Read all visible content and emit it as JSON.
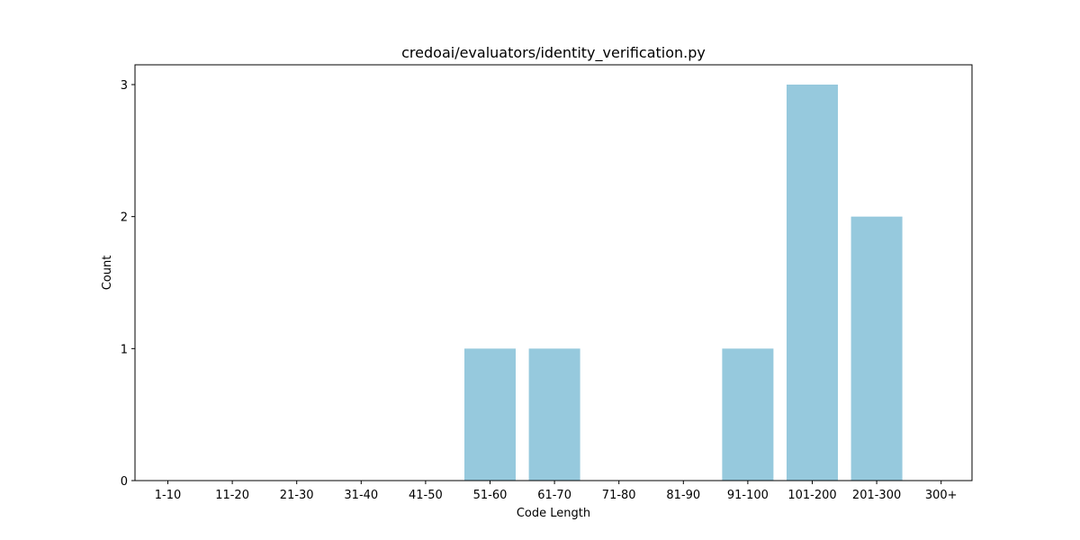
{
  "chart_data": {
    "type": "bar",
    "title": "credoai/evaluators/identity_verification.py",
    "xlabel": "Code Length",
    "ylabel": "Count",
    "categories": [
      "1-10",
      "11-20",
      "21-30",
      "31-40",
      "41-50",
      "51-60",
      "61-70",
      "71-80",
      "81-90",
      "91-100",
      "101-200",
      "201-300",
      "300+"
    ],
    "values": [
      0,
      0,
      0,
      0,
      0,
      1,
      1,
      0,
      0,
      1,
      3,
      2,
      0
    ],
    "yticks": [
      0,
      1,
      2,
      3
    ],
    "ylim": [
      0,
      3.15
    ],
    "bar_color": "#96c9dd",
    "grid": false,
    "legend": "none"
  }
}
